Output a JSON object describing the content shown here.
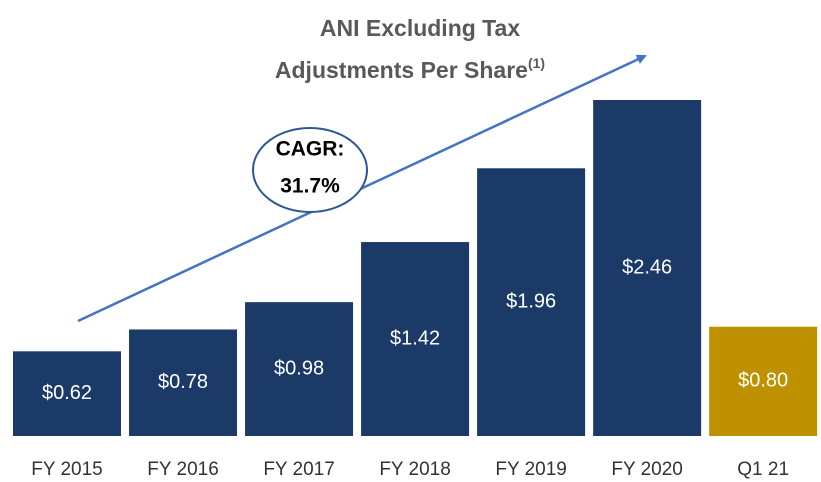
{
  "chart_data": {
    "type": "bar",
    "title": [
      "ANI Excluding Tax",
      "Adjustments Per Share"
    ],
    "title_superscript": "(1)",
    "categories": [
      "FY 2015",
      "FY 2016",
      "FY 2017",
      "FY 2018",
      "FY 2019",
      "FY 2020",
      "Q1 21"
    ],
    "values": [
      0.62,
      0.78,
      0.98,
      1.42,
      1.96,
      2.46,
      0.8
    ],
    "value_labels": [
      "$0.62",
      "$0.78",
      "$0.98",
      "$1.42",
      "$1.96",
      "$2.46",
      "$0.80"
    ],
    "colors": [
      "#1b3a68",
      "#1b3a68",
      "#1b3a68",
      "#1b3a68",
      "#1b3a68",
      "#1b3a68",
      "#bf9000"
    ],
    "annotation": [
      "CAGR:",
      "31.7%"
    ]
  }
}
